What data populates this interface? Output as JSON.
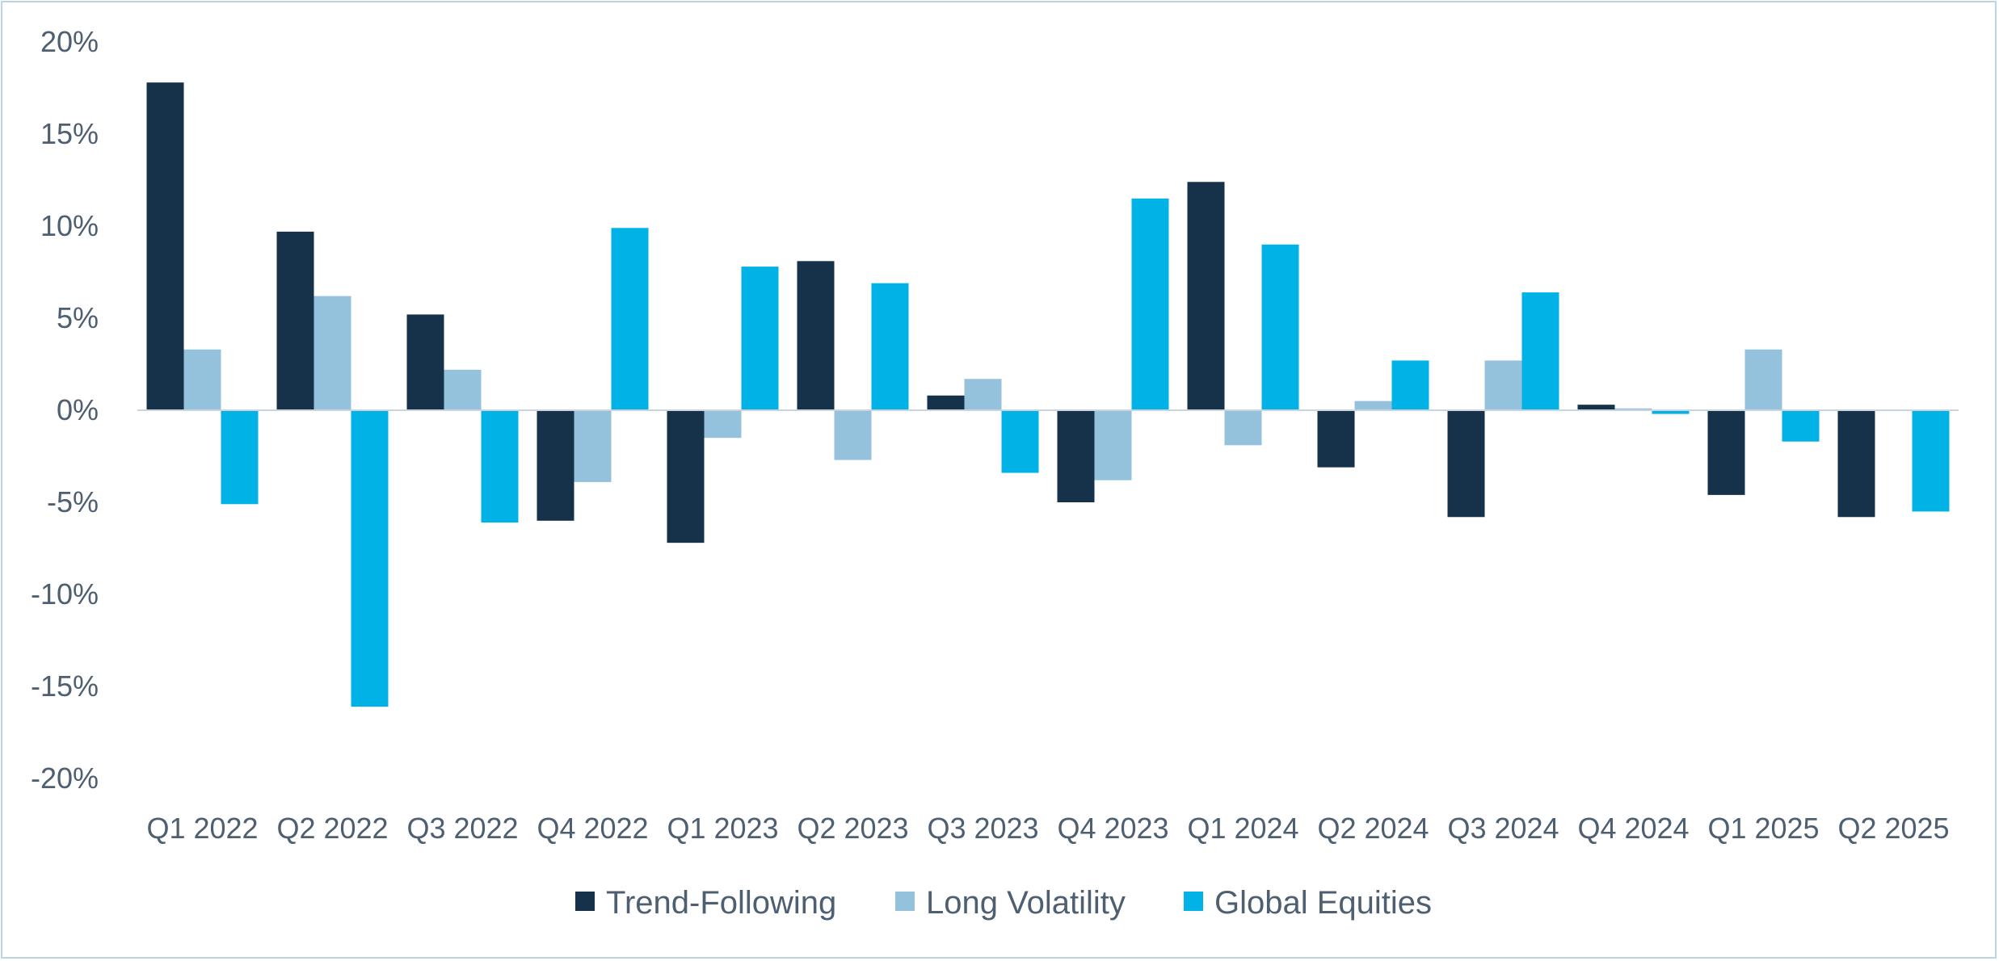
{
  "chart_data": {
    "type": "bar",
    "categories": [
      "Q1 2022",
      "Q2 2022",
      "Q3 2022",
      "Q4 2022",
      "Q1 2023",
      "Q2 2023",
      "Q3 2023",
      "Q4 2023",
      "Q1 2024",
      "Q2 2024",
      "Q3 2024",
      "Q4 2024",
      "Q1 2025",
      "Q2 2025"
    ],
    "series": [
      {
        "name": "Trend-Following",
        "color": "#16324a",
        "values": [
          17.8,
          9.7,
          5.2,
          -6.0,
          -7.2,
          8.1,
          0.8,
          -5.0,
          12.4,
          -3.1,
          -5.8,
          0.3,
          -4.6,
          -5.8
        ]
      },
      {
        "name": "Long Volatility",
        "color": "#94c1dc",
        "values": [
          3.3,
          6.2,
          2.2,
          -3.9,
          -1.5,
          -2.7,
          1.7,
          -3.8,
          -1.9,
          0.5,
          2.7,
          0.1,
          3.3,
          0.0
        ]
      },
      {
        "name": "Global Equities",
        "color": "#00b2e6",
        "values": [
          -5.1,
          -16.1,
          -6.1,
          9.9,
          7.8,
          6.9,
          -3.4,
          11.5,
          9.0,
          2.7,
          6.4,
          -0.2,
          -1.7,
          -5.5
        ]
      }
    ],
    "ylim": [
      -20,
      20
    ],
    "yticks": [
      20,
      15,
      10,
      5,
      0,
      -5,
      -10,
      -15,
      -20
    ],
    "ytick_labels": [
      "20%",
      "15%",
      "10%",
      "5%",
      "0%",
      "-5%",
      "-10%",
      "-15%",
      "-20%"
    ],
    "xlabel": "",
    "ylabel": "",
    "grid": false,
    "legend_position": "bottom-center"
  }
}
